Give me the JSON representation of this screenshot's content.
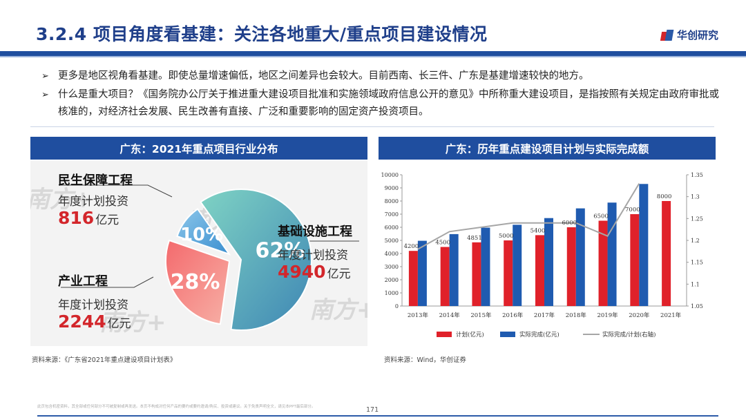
{
  "header": {
    "title": "3.2.4 项目角度看基建：关注各地重大/重点项目建设情况",
    "brand": "华创研究"
  },
  "bullets": [
    "更多是地区视角看基建。即使总量增速偏低，地区之间差异也会较大。目前西南、长三件、广东是基建增速较快的地方。",
    "什么是重大项目？《国务院办公厅关于推进重大建设项目批准和实施领域政府信息公开的意见》中所称重大建设项目，是指按照有关规定由政府审批或核准的，对经济社会发展、民生改善有直接、广泛和重要影响的固定资产投资项目。"
  ],
  "bullet_marker": "➢",
  "left_panel": {
    "header": "广东：2021年重点项目行业分布",
    "watermark": "南方+",
    "source": "资料来源：《广东省2021年重点建设项目计划表》"
  },
  "right_panel": {
    "header": "广东：历年重点建设项目计划与实际完成额",
    "source": "资料来源：Wind，华创证券"
  },
  "colors": {
    "primary_blue": "#1f4e9f",
    "bar_plan": "#e0212a",
    "bar_actual": "#1f5bb0",
    "ratio_line": "#a6a6a6",
    "pie_infra": "#4fb7aa",
    "pie_industry": "#f05458",
    "pie_livelihood": "#5aa7dc"
  },
  "chart_data": [
    {
      "type": "pie",
      "title": "广东：2021年重点项目行业分布",
      "slices": [
        {
          "name": "基础设施工程",
          "sub": "年度计划投资",
          "amount": "4940",
          "unit": "亿元",
          "value": 62,
          "label": "62%"
        },
        {
          "name": "产业工程",
          "sub": "年度计划投资",
          "amount": "2244",
          "unit": "亿元",
          "value": 28,
          "label": "28%"
        },
        {
          "name": "民生保障工程",
          "sub": "年度计划投资",
          "amount": "816",
          "unit": "亿元",
          "value": 10,
          "label": "10%"
        }
      ]
    },
    {
      "type": "bar",
      "title": "广东：历年重点建设项目计划与实际完成额",
      "categories": [
        "2013年",
        "2014年",
        "2015年",
        "2016年",
        "2017年",
        "2018年",
        "2019年",
        "2020年",
        "2021年"
      ],
      "series": [
        {
          "name": "计划(亿元)",
          "values": [
            4200,
            4500,
            4851,
            5000,
            5400,
            6000,
            6500,
            7000,
            8000
          ],
          "labels": [
            "4200",
            "4500",
            "4851",
            "5000",
            "5400",
            "6000",
            "6500",
            "7000",
            "8000"
          ]
        },
        {
          "name": "实际完成(亿元)",
          "values": [
            4970,
            5480,
            5970,
            6190,
            6700,
            7440,
            7880,
            9300,
            null
          ]
        },
        {
          "name": "实际完成/计划(右轴)",
          "type": "line",
          "axis": "right",
          "values": [
            1.18,
            1.22,
            1.23,
            1.24,
            1.24,
            1.24,
            1.21,
            1.33,
            null
          ]
        }
      ],
      "ylim": [
        0,
        10000
      ],
      "yticks": [
        "0",
        "1000",
        "2000",
        "3000",
        "4000",
        "5000",
        "6000",
        "7000",
        "8000",
        "9000",
        "10000"
      ],
      "y2lim": [
        1.05,
        1.35
      ],
      "y2ticks": [
        "1.05",
        "1.1",
        "1.15",
        "1.2",
        "1.25",
        "1.3",
        "1.35"
      ],
      "legend_position": "bottom",
      "grid": false
    }
  ],
  "footer": {
    "disclaimer": "此页包含机密资料，其全部或任何部分不可被复制或再发送。本页不构成对任何产品的要约或要约邀请/购买、投资或建议。关于免责声明全文，请见本PPT最后部分。",
    "page": "171"
  }
}
